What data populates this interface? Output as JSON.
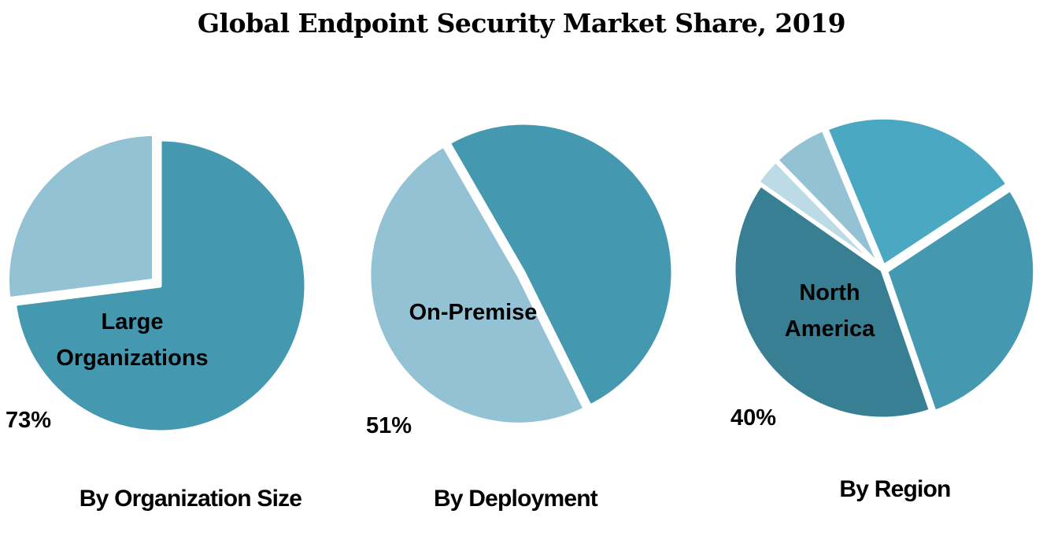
{
  "title": "Global Endpoint Security Market Share, 2019",
  "chart_data": [
    {
      "type": "pie",
      "caption": "By Organization Size",
      "highlight_label": [
        "Large",
        "Organizations"
      ],
      "highlight_value": "73%",
      "slices": [
        {
          "value": 73,
          "color": "#4499b0"
        },
        {
          "value": 27,
          "color": "#93c2d4"
        }
      ]
    },
    {
      "type": "pie",
      "caption": "By Deployment",
      "highlight_label": [
        "On-Premise"
      ],
      "highlight_value": "51%",
      "slices": [
        {
          "value": 51,
          "color": "#4499b0"
        },
        {
          "value": 49,
          "color": "#93c2d4"
        }
      ]
    },
    {
      "type": "pie",
      "caption": "By Region",
      "highlight_label": [
        "North",
        "America"
      ],
      "highlight_value": "40%",
      "slices": [
        {
          "value": 40,
          "color": "#387f94"
        },
        {
          "value": 3,
          "color": "#bcdbe6"
        },
        {
          "value": 6,
          "color": "#93c2d4"
        },
        {
          "value": 22,
          "color": "#4aa8c3"
        },
        {
          "value": 29,
          "color": "#4499b0"
        }
      ]
    }
  ]
}
